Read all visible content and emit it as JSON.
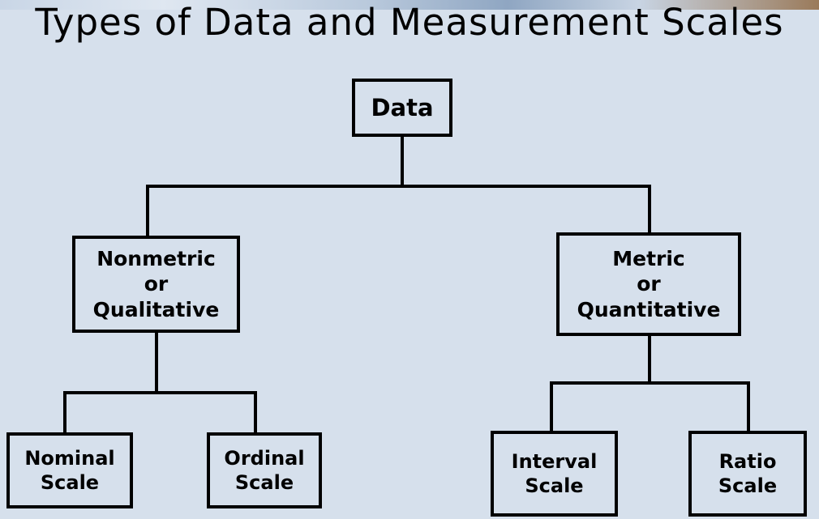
{
  "title": "Types of Data and Measurement Scales",
  "nodes": {
    "data": "Data",
    "nonmetric": "Nonmetric\nor\nQualitative",
    "metric": "Metric\nor\nQuantitative",
    "nominal": "Nominal\nScale",
    "ordinal": "Ordinal\nScale",
    "interval": "Interval\nScale",
    "ratio": "Ratio\nScale"
  }
}
